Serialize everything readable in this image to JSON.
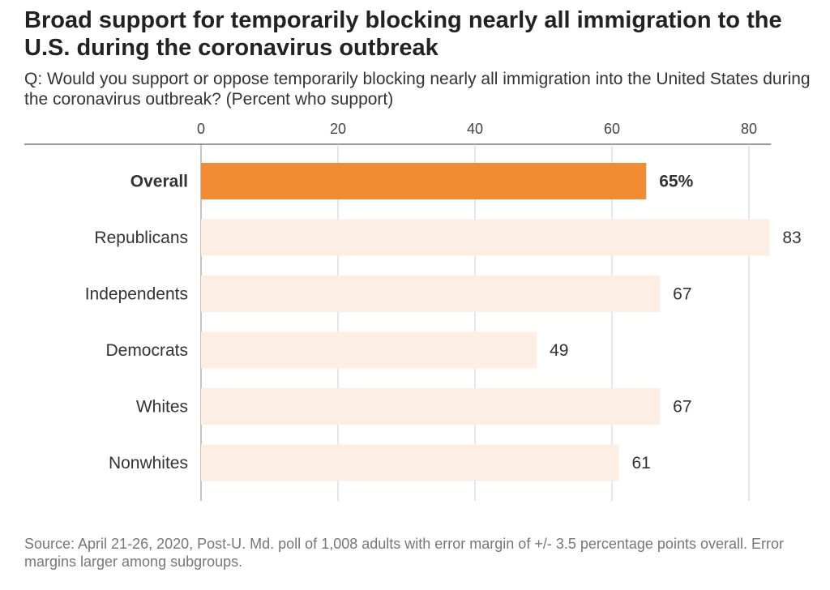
{
  "title": "Broad support for temporarily blocking nearly all immigration to the U.S. during the coronavirus outbreak",
  "subtitle": "Q: Would you support or oppose temporarily blocking nearly all immigration into the United States during the coronavirus outbreak? (Percent who support)",
  "source": "Source: April 21-26, 2020, Post-U. Md. poll of 1,008 adults with error margin of +/- 3.5 percentage points overall. Error margins larger among subgroups.",
  "colors": {
    "highlight": "#f28c33",
    "bar": "#fdeee3",
    "axis": "#777777",
    "grid": "#cfcfcf"
  },
  "chart_data": {
    "type": "bar",
    "orientation": "horizontal",
    "categories": [
      "Overall",
      "Republicans",
      "Independents",
      "Democrats",
      "Whites",
      "Nonwhites"
    ],
    "values": [
      65,
      83,
      67,
      49,
      67,
      61
    ],
    "value_labels": [
      "65%",
      "83",
      "67",
      "49",
      "67",
      "61"
    ],
    "highlight_index": 0,
    "xlim": [
      0,
      83
    ],
    "xticks": [
      0,
      20,
      40,
      60,
      80
    ],
    "xtick_labels": [
      "0",
      "20",
      "40",
      "60",
      "80"
    ],
    "xaxis_position": "top",
    "grid": true
  }
}
